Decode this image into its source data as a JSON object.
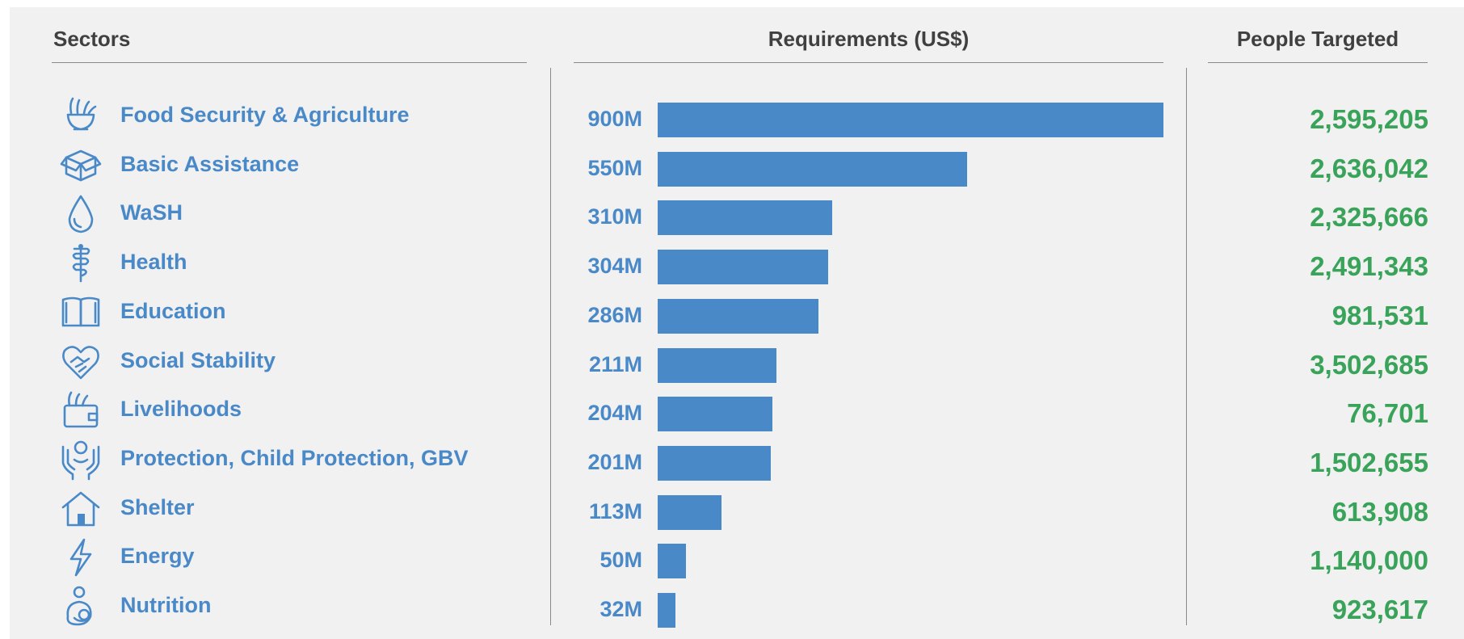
{
  "headers": {
    "sectors": "Sectors",
    "requirements": "Requirements (US$)",
    "people": "People Targeted"
  },
  "colors": {
    "bar": "#4a89c8",
    "people": "#3aa35a",
    "header": "#404040",
    "background": "#f1f1f2"
  },
  "chart_data": {
    "type": "bar",
    "orientation": "horizontal",
    "title": "",
    "xlabel": "Requirements (US$)",
    "ylabel": "Sectors",
    "unit": "US$",
    "xlim": [
      0,
      900000000
    ],
    "grid": false,
    "legend": "none",
    "categories": [
      "Food Security & Agriculture",
      "Basic Assistance",
      "WaSH",
      "Health",
      "Education",
      "Social Stability",
      "Livelihoods",
      "Protection, Child Protection, GBV",
      "Shelter",
      "Energy",
      "Nutrition"
    ],
    "values": [
      900000000,
      550000000,
      310000000,
      304000000,
      286000000,
      211000000,
      204000000,
      201000000,
      113000000,
      50000000,
      32000000
    ],
    "value_labels": [
      "900M",
      "550M",
      "310M",
      "304M",
      "286M",
      "211M",
      "204M",
      "201M",
      "113M",
      "50M",
      "32M"
    ],
    "people_targeted": [
      "2,595,205",
      "2,636,042",
      "2,325,666",
      "2,491,343",
      "981,531",
      "3,502,685",
      "76,701",
      "1,502,655",
      "613,908",
      "1,140,000",
      "923,617"
    ]
  },
  "icons": [
    "food-bowl-icon",
    "box-icon",
    "water-drop-icon",
    "caduceus-icon",
    "open-book-icon",
    "heart-handshake-icon",
    "wallet-wheat-icon",
    "hands-person-icon",
    "house-icon",
    "lightning-icon",
    "mother-child-icon"
  ]
}
